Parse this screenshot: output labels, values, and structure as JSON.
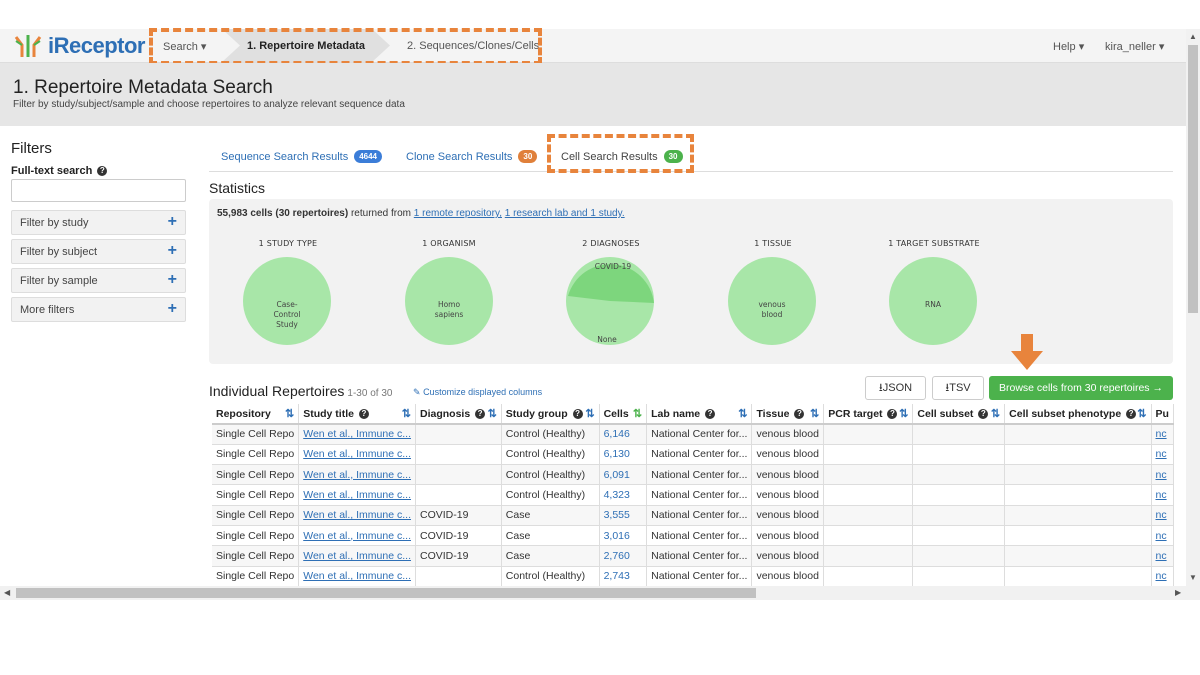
{
  "navbar": {
    "brand": "iReceptor",
    "search_label": "Search",
    "breadcrumb_active": "1. Repertoire Metadata",
    "breadcrumb_next": "2. Sequences/Clones/Cells",
    "help_label": "Help",
    "user_label": "kira_neller"
  },
  "page": {
    "title": "1. Repertoire Metadata Search",
    "subtitle": "Filter by study/subject/sample and choose repertoires to analyze relevant sequence data"
  },
  "filters": {
    "title": "Filters",
    "fulltext_label": "Full-text search",
    "fulltext_value": "",
    "items": [
      "Filter by study",
      "Filter by subject",
      "Filter by sample",
      "More filters"
    ]
  },
  "tabs": [
    {
      "label": "Sequence Search Results",
      "count": "4644",
      "color": "#3b7dd8"
    },
    {
      "label": "Clone Search Results",
      "count": "30",
      "color": "#e0803a"
    },
    {
      "label": "Cell Search Results",
      "count": "30",
      "color": "#4cb24c"
    }
  ],
  "statistics": {
    "title": "Statistics",
    "summary_bold": "55,983 cells (30 repertoires)",
    "summary_text": " returned from ",
    "link1": "1 remote repository,",
    "link2": "1 research lab and 1 study.",
    "charts": [
      {
        "heading": "1 STUDY TYPE",
        "labels": [
          "Case-",
          "Control",
          "Study"
        ]
      },
      {
        "heading": "1 ORGANISM",
        "labels": [
          "Homo",
          "sapiens"
        ]
      },
      {
        "heading": "2 DIAGNOSES",
        "slice_top": "COVID-19",
        "slice_bottom": "None",
        "covid_fraction": 0.43
      },
      {
        "heading": "1 TISSUE",
        "labels": [
          "venous",
          "blood"
        ]
      },
      {
        "heading": "1 TARGET SUBSTRATE",
        "labels": [
          "RNA"
        ]
      }
    ]
  },
  "repertoires": {
    "title": "Individual Repertoires",
    "count": "1-30 of 30",
    "customize": "Customize displayed columns",
    "json_btn": "JSON",
    "tsv_btn": "TSV",
    "browse_btn": "Browse cells from 30 repertoires →",
    "columns": [
      "Repository",
      "Study title",
      "Diagnosis",
      "Study group",
      "Cells",
      "Lab name",
      "Tissue",
      "PCR target",
      "Cell subset",
      "Cell subset phenotype",
      "Pu"
    ],
    "rows": [
      [
        "Single Cell Repo",
        "Wen et al., Immune c...",
        "",
        "Control (Healthy)",
        "6,146",
        "National Center for...",
        "venous blood",
        "",
        "",
        "",
        "nc"
      ],
      [
        "Single Cell Repo",
        "Wen et al., Immune c...",
        "",
        "Control (Healthy)",
        "6,130",
        "National Center for...",
        "venous blood",
        "",
        "",
        "",
        "nc"
      ],
      [
        "Single Cell Repo",
        "Wen et al., Immune c...",
        "",
        "Control (Healthy)",
        "6,091",
        "National Center for...",
        "venous blood",
        "",
        "",
        "",
        "nc"
      ],
      [
        "Single Cell Repo",
        "Wen et al., Immune c...",
        "",
        "Control (Healthy)",
        "4,323",
        "National Center for...",
        "venous blood",
        "",
        "",
        "",
        "nc"
      ],
      [
        "Single Cell Repo",
        "Wen et al., Immune c...",
        "COVID-19",
        "Case",
        "3,555",
        "National Center for...",
        "venous blood",
        "",
        "",
        "",
        "nc"
      ],
      [
        "Single Cell Repo",
        "Wen et al., Immune c...",
        "COVID-19",
        "Case",
        "3,016",
        "National Center for...",
        "venous blood",
        "",
        "",
        "",
        "nc"
      ],
      [
        "Single Cell Repo",
        "Wen et al., Immune c...",
        "COVID-19",
        "Case",
        "2,760",
        "National Center for...",
        "venous blood",
        "",
        "",
        "",
        "nc"
      ],
      [
        "Single Cell Repo",
        "Wen et al., Immune c...",
        "",
        "Control (Healthy)",
        "2,743",
        "National Center for...",
        "venous blood",
        "",
        "",
        "",
        "nc"
      ]
    ]
  },
  "colors": {
    "accent_orange": "#e8843c",
    "link_blue": "#2e6fb5",
    "pie_light": "#a8e6a8",
    "pie_dark": "#7dd67d",
    "browse_green": "#4cb24c"
  }
}
